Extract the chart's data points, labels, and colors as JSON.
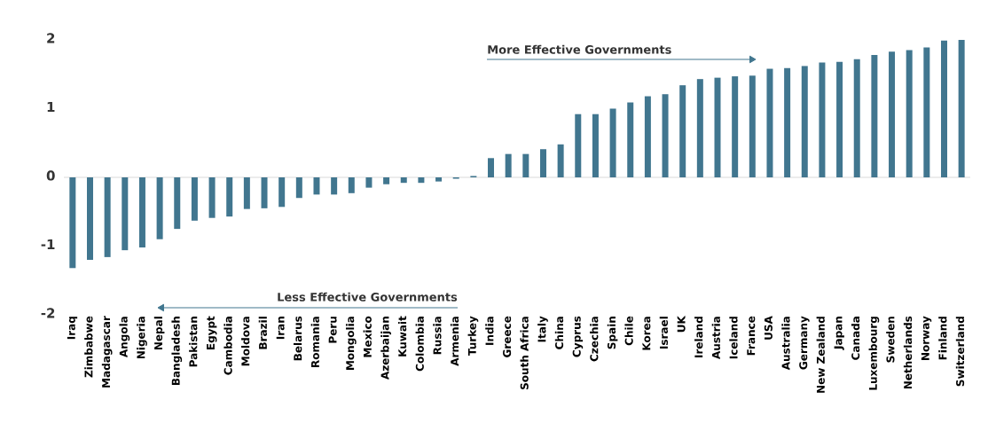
{
  "chart_data": {
    "type": "bar",
    "categories": [
      "Iraq",
      "Zimbabwe",
      "Madagascar",
      "Angola",
      "Nigeria",
      "Nepal",
      "Bangladesh",
      "Pakistan",
      "Egypt",
      "Cambodia",
      "Moldova",
      "Brazil",
      "Iran",
      "Belarus",
      "Romania",
      "Peru",
      "Mongolia",
      "Mexico",
      "Azerbaijan",
      "Kuwait",
      "Colombia",
      "Russia",
      "Armenia",
      "Turkey",
      "India",
      "Greece",
      "South Africa",
      "Italy",
      "China",
      "Cyprus",
      "Czechia",
      "Spain",
      "Chile",
      "Korea",
      "Israel",
      "UK",
      "Ireland",
      "Austria",
      "Iceland",
      "France",
      "USA",
      "Australia",
      "Germany",
      "New Zealand",
      "Japan",
      "Canada",
      "Luxembourg",
      "Sweden",
      "Netherlands",
      "Norway",
      "Finland",
      "Switzerland"
    ],
    "values": [
      -1.32,
      -1.2,
      -1.16,
      -1.06,
      -1.02,
      -0.9,
      -0.75,
      -0.63,
      -0.59,
      -0.57,
      -0.46,
      -0.45,
      -0.43,
      -0.3,
      -0.25,
      -0.25,
      -0.23,
      -0.15,
      -0.1,
      -0.08,
      -0.08,
      -0.06,
      -0.02,
      0.02,
      0.28,
      0.34,
      0.34,
      0.41,
      0.48,
      0.92,
      0.92,
      1.0,
      1.09,
      1.18,
      1.21,
      1.34,
      1.43,
      1.45,
      1.47,
      1.48,
      1.58,
      1.59,
      1.62,
      1.67,
      1.68,
      1.72,
      1.78,
      1.83,
      1.85,
      1.89,
      1.99,
      2.0
    ],
    "color": "#41768f",
    "ylim": [
      -2,
      2
    ],
    "yticks": [
      -2,
      -1,
      0,
      1,
      2
    ],
    "annotations": [
      "More Effective Governments",
      "Less Effective Governments"
    ]
  }
}
